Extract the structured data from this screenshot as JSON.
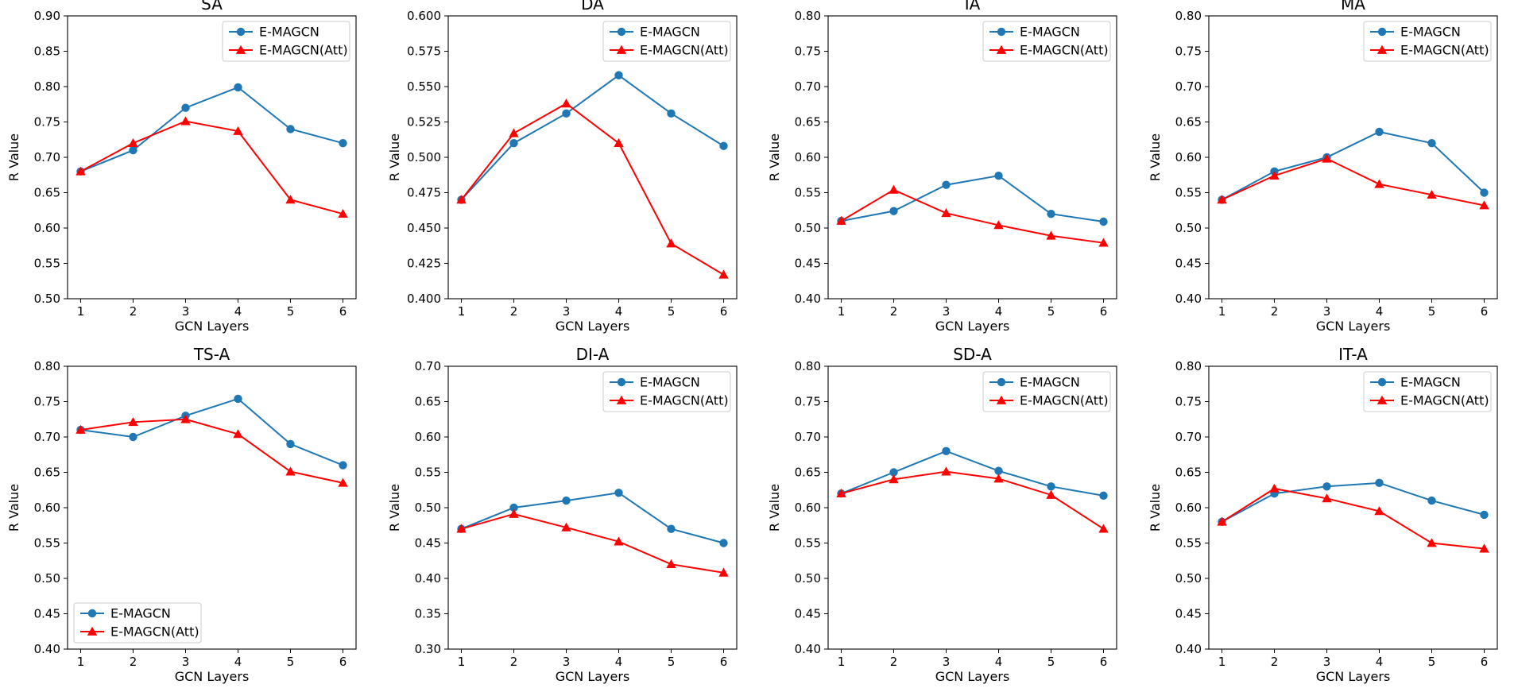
{
  "figure": {
    "xlabel": "GCN Layers",
    "ylabel": "R Value",
    "series_names": [
      "E-MAGCN",
      "E-MAGCN(Att)"
    ],
    "colors": {
      "emagcn": "#1f77b4",
      "att": "#ff0000"
    }
  },
  "chart_data": [
    {
      "type": "line",
      "title": "SA",
      "x": [
        1,
        2,
        3,
        4,
        5,
        6
      ],
      "ylim": [
        0.5,
        0.9
      ],
      "yticks": [
        "0.50",
        "0.55",
        "0.60",
        "0.65",
        "0.70",
        "0.75",
        "0.80",
        "0.85",
        "0.90"
      ],
      "legend": "top-right",
      "series": [
        {
          "name": "E-MAGCN",
          "values": [
            0.68,
            0.71,
            0.77,
            0.799,
            0.74,
            0.72
          ]
        },
        {
          "name": "E-MAGCN(Att)",
          "values": [
            0.68,
            0.72,
            0.751,
            0.737,
            0.64,
            0.62
          ]
        }
      ]
    },
    {
      "type": "line",
      "title": "DA",
      "x": [
        1,
        2,
        3,
        4,
        5,
        6
      ],
      "ylim": [
        0.4,
        0.6
      ],
      "yticks": [
        "0.400",
        "0.425",
        "0.450",
        "0.475",
        "0.500",
        "0.525",
        "0.550",
        "0.575",
        "0.600"
      ],
      "legend": "top-right",
      "series": [
        {
          "name": "E-MAGCN",
          "values": [
            0.47,
            0.51,
            0.531,
            0.558,
            0.531,
            0.508
          ]
        },
        {
          "name": "E-MAGCN(Att)",
          "values": [
            0.47,
            0.517,
            0.538,
            0.51,
            0.439,
            0.417
          ]
        }
      ]
    },
    {
      "type": "line",
      "title": "IA",
      "x": [
        1,
        2,
        3,
        4,
        5,
        6
      ],
      "ylim": [
        0.4,
        0.8
      ],
      "yticks": [
        "0.40",
        "0.45",
        "0.50",
        "0.55",
        "0.60",
        "0.65",
        "0.70",
        "0.75",
        "0.80"
      ],
      "legend": "top-right",
      "series": [
        {
          "name": "E-MAGCN",
          "values": [
            0.51,
            0.524,
            0.561,
            0.574,
            0.52,
            0.509
          ]
        },
        {
          "name": "E-MAGCN(Att)",
          "values": [
            0.51,
            0.554,
            0.521,
            0.504,
            0.489,
            0.479
          ]
        }
      ]
    },
    {
      "type": "line",
      "title": "MA",
      "x": [
        1,
        2,
        3,
        4,
        5,
        6
      ],
      "ylim": [
        0.4,
        0.8
      ],
      "yticks": [
        "0.40",
        "0.45",
        "0.50",
        "0.55",
        "0.60",
        "0.65",
        "0.70",
        "0.75",
        "0.80"
      ],
      "legend": "top-right",
      "series": [
        {
          "name": "E-MAGCN",
          "values": [
            0.54,
            0.58,
            0.6,
            0.636,
            0.62,
            0.55
          ]
        },
        {
          "name": "E-MAGCN(Att)",
          "values": [
            0.54,
            0.574,
            0.598,
            0.562,
            0.547,
            0.532
          ]
        }
      ]
    },
    {
      "type": "line",
      "title": "TS-A",
      "x": [
        1,
        2,
        3,
        4,
        5,
        6
      ],
      "ylim": [
        0.4,
        0.8
      ],
      "yticks": [
        "0.40",
        "0.45",
        "0.50",
        "0.55",
        "0.60",
        "0.65",
        "0.70",
        "0.75",
        "0.80"
      ],
      "legend": "bottom-left",
      "series": [
        {
          "name": "E-MAGCN",
          "values": [
            0.71,
            0.7,
            0.73,
            0.754,
            0.69,
            0.66
          ]
        },
        {
          "name": "E-MAGCN(Att)",
          "values": [
            0.71,
            0.721,
            0.725,
            0.704,
            0.651,
            0.635
          ]
        }
      ]
    },
    {
      "type": "line",
      "title": "DI-A",
      "x": [
        1,
        2,
        3,
        4,
        5,
        6
      ],
      "ylim": [
        0.3,
        0.7
      ],
      "yticks": [
        "0.30",
        "0.35",
        "0.40",
        "0.45",
        "0.50",
        "0.55",
        "0.60",
        "0.65",
        "0.70"
      ],
      "legend": "top-right",
      "series": [
        {
          "name": "E-MAGCN",
          "values": [
            0.47,
            0.5,
            0.51,
            0.521,
            0.47,
            0.45
          ]
        },
        {
          "name": "E-MAGCN(Att)",
          "values": [
            0.47,
            0.491,
            0.472,
            0.452,
            0.42,
            0.408
          ]
        }
      ]
    },
    {
      "type": "line",
      "title": "SD-A",
      "x": [
        1,
        2,
        3,
        4,
        5,
        6
      ],
      "ylim": [
        0.4,
        0.8
      ],
      "yticks": [
        "0.40",
        "0.45",
        "0.50",
        "0.55",
        "0.60",
        "0.65",
        "0.70",
        "0.75",
        "0.80"
      ],
      "legend": "top-right",
      "series": [
        {
          "name": "E-MAGCN",
          "values": [
            0.62,
            0.65,
            0.68,
            0.652,
            0.63,
            0.617
          ]
        },
        {
          "name": "E-MAGCN(Att)",
          "values": [
            0.62,
            0.64,
            0.651,
            0.641,
            0.618,
            0.57
          ]
        }
      ]
    },
    {
      "type": "line",
      "title": "IT-A",
      "x": [
        1,
        2,
        3,
        4,
        5,
        6
      ],
      "ylim": [
        0.4,
        0.8
      ],
      "yticks": [
        "0.40",
        "0.45",
        "0.50",
        "0.55",
        "0.60",
        "0.65",
        "0.70",
        "0.75",
        "0.80"
      ],
      "legend": "top-right",
      "series": [
        {
          "name": "E-MAGCN",
          "values": [
            0.58,
            0.62,
            0.63,
            0.635,
            0.61,
            0.59
          ]
        },
        {
          "name": "E-MAGCN(Att)",
          "values": [
            0.58,
            0.627,
            0.613,
            0.595,
            0.55,
            0.542
          ]
        }
      ]
    }
  ]
}
